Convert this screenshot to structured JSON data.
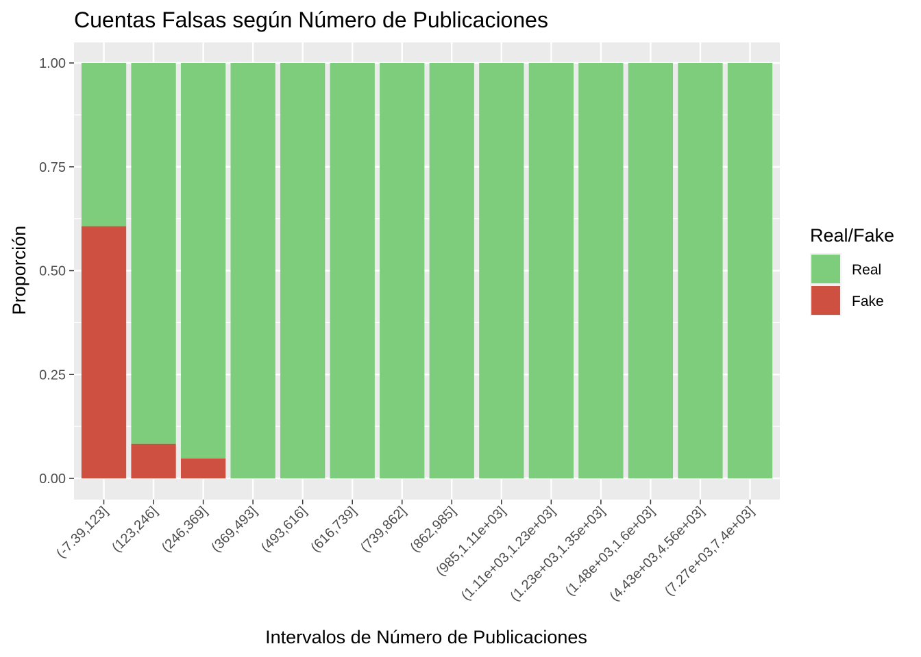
{
  "chart_data": {
    "type": "bar",
    "stacked": true,
    "title": "Cuentas Falsas según Número de Publicaciones",
    "xlabel": "Intervalos de Número de Publicaciones",
    "ylabel": "Proporción",
    "ylim": [
      0,
      1
    ],
    "yticks": [
      "0.00",
      "0.25",
      "0.50",
      "0.75",
      "1.00"
    ],
    "ytick_values": [
      0,
      0.25,
      0.5,
      0.75,
      1
    ],
    "grid": true,
    "legend_position": "right",
    "legend_title": "Real/Fake",
    "categories": [
      "(-7.39,123]",
      "(123,246]",
      "(246,369]",
      "(369,493]",
      "(493,616]",
      "(616,739]",
      "(739,862]",
      "(862,985]",
      "(985,1.11e+03]",
      "(1.11e+03,1.23e+03]",
      "(1.23e+03,1.35e+03]",
      "(1.48e+03,1.6e+03]",
      "(4.43e+03,4.56e+03]",
      "(7.27e+03,7.4e+03]"
    ],
    "series": [
      {
        "name": "Fake",
        "color": "#CD5040",
        "values": [
          0.607,
          0.083,
          0.048,
          0,
          0,
          0,
          0,
          0,
          0,
          0,
          0,
          0,
          0,
          0
        ]
      },
      {
        "name": "Real",
        "color": "#7DCD7D",
        "values": [
          0.393,
          0.917,
          0.952,
          1,
          1,
          1,
          1,
          1,
          1,
          1,
          1,
          1,
          1,
          1
        ]
      }
    ],
    "legend_order": [
      "Real",
      "Fake"
    ],
    "panel_background": "#EBEBEB",
    "gridline_color": "#FFFFFF"
  }
}
